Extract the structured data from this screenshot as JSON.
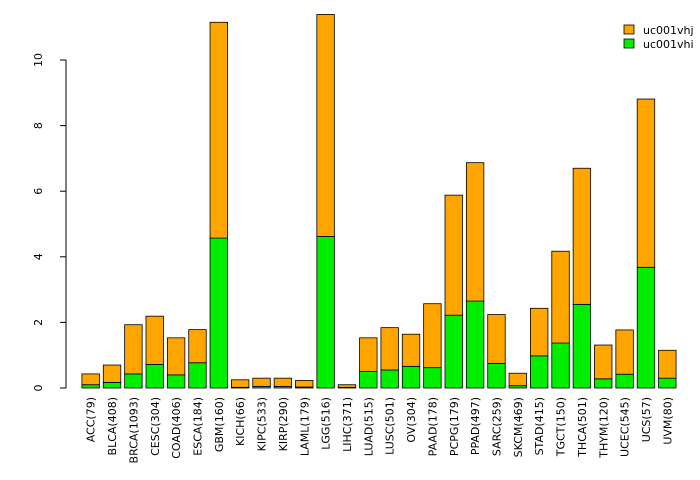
{
  "chart_data": {
    "type": "bar",
    "stacked": true,
    "categories": [
      "ACC(79)",
      "BLCA(408)",
      "BRCA(1093)",
      "CESC(304)",
      "COAD(406)",
      "ESCA(184)",
      "GBM(160)",
      "KICH(66)",
      "KIPC(533)",
      "KIRP(290)",
      "LAML(179)",
      "LGG(516)",
      "LIHC(371)",
      "LUAD(515)",
      "LUSC(501)",
      "OV(304)",
      "PAAD(178)",
      "PCPG(179)",
      "PPAD(497)",
      "SARC(259)",
      "SKCM(469)",
      "STAD(415)",
      "TGCT(150)",
      "THCA(501)",
      "THYM(120)",
      "UCEC(545)",
      "UCS(57)",
      "UVM(80)"
    ],
    "series": [
      {
        "name": "uc001vhi",
        "color": "#00ee00",
        "values": [
          0.1,
          0.17,
          0.43,
          0.72,
          0.4,
          0.77,
          4.57,
          0.02,
          0.05,
          0.05,
          0.03,
          4.62,
          0.02,
          0.5,
          0.55,
          0.66,
          0.62,
          2.22,
          2.65,
          0.75,
          0.07,
          0.98,
          1.37,
          2.55,
          0.28,
          0.42,
          3.68,
          0.3
        ]
      },
      {
        "name": "uc001vhj",
        "color": "#ffa500",
        "values": [
          0.33,
          0.53,
          1.5,
          1.47,
          1.13,
          1.01,
          6.58,
          0.23,
          0.25,
          0.25,
          0.2,
          6.77,
          0.08,
          1.03,
          1.29,
          0.98,
          1.95,
          3.66,
          4.22,
          1.49,
          0.38,
          1.45,
          2.8,
          4.15,
          1.03,
          1.35,
          5.13,
          0.85
        ]
      }
    ],
    "yticks": [
      0,
      2,
      4,
      6,
      8,
      10
    ],
    "ylim": [
      0,
      11.4
    ],
    "title": "",
    "xlabel": "",
    "ylabel": "",
    "legend": {
      "position": "top-right",
      "entries": [
        "uc001vhj",
        "uc001vhi"
      ]
    },
    "grid": false
  }
}
